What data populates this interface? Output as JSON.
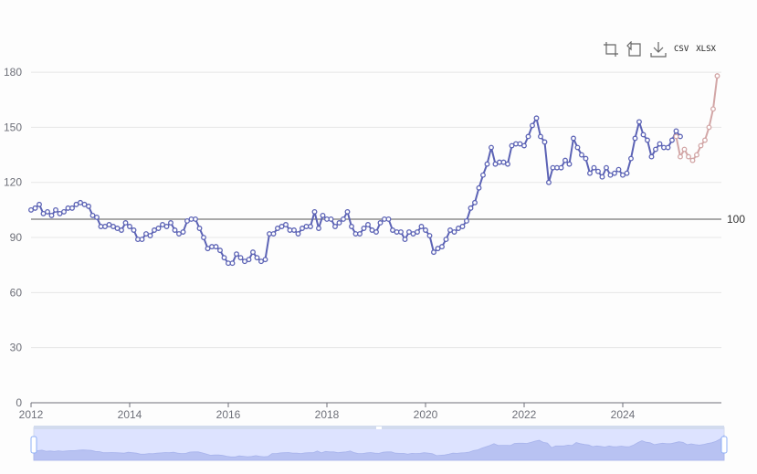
{
  "toolbox": {
    "items": [
      {
        "icon": "zoom-area-icon"
      },
      {
        "icon": "zoom-reset-icon"
      },
      {
        "icon": "download-icon"
      }
    ],
    "csv_label": "CSV",
    "xlsx_label": "XLSX"
  },
  "colors": {
    "actual": "#5c63b5",
    "forecast": "#d2a6a6",
    "grid": "#e6e6e6",
    "reference": "#555555",
    "slider_fill": "#dde3ff",
    "slider_area": "#b8c2f2"
  },
  "chart_data": {
    "type": "line",
    "xlim": [
      2012,
      2026
    ],
    "ylim": [
      0,
      190
    ],
    "y_ticks": [
      "0",
      "30",
      "60",
      "90",
      "120",
      "150",
      "180"
    ],
    "x_ticks": [
      "2012",
      "2014",
      "2016",
      "2018",
      "2020",
      "2022",
      "2024"
    ],
    "reference_line": {
      "value": 100,
      "label": "100"
    },
    "series": [
      {
        "role": "actual",
        "start": 2012.0,
        "step": 0.08333,
        "values": [
          105,
          106,
          108,
          103,
          104,
          102,
          105,
          103,
          104,
          106,
          106,
          108,
          109,
          108,
          107,
          102,
          101,
          96,
          96,
          97,
          96,
          95,
          94,
          98,
          96,
          94,
          89,
          89,
          92,
          91,
          94,
          95,
          97,
          96,
          98,
          94,
          92,
          93,
          99,
          100,
          100,
          95,
          90,
          84,
          85,
          85,
          83,
          79,
          76,
          76,
          81,
          79,
          77,
          78,
          82,
          79,
          77,
          78,
          92,
          92,
          95,
          96,
          97,
          94,
          94,
          92,
          95,
          96,
          96,
          104,
          95,
          102,
          100,
          100,
          96,
          98,
          100,
          104,
          96,
          92,
          92,
          95,
          97,
          94,
          93,
          98,
          100,
          100,
          94,
          93,
          93,
          89,
          93,
          92,
          93,
          96,
          94,
          91,
          82,
          84,
          85,
          89,
          94,
          93,
          95,
          96,
          99,
          106,
          109,
          117,
          124,
          130,
          139,
          130,
          131,
          131,
          130,
          140,
          141,
          141,
          140,
          145,
          151,
          155,
          145,
          142,
          120,
          128,
          128,
          128,
          132,
          130,
          144,
          139,
          135,
          133,
          125,
          128,
          126,
          123,
          128,
          124,
          125,
          127,
          124,
          125,
          133,
          144,
          153,
          146,
          143,
          134,
          138,
          141,
          139,
          139,
          143,
          148,
          145
        ]
      },
      {
        "role": "forecast",
        "start": 2025.083,
        "step": 0.08333,
        "values": [
          145,
          134,
          138,
          134,
          132,
          135,
          140,
          143,
          150,
          160,
          178
        ]
      }
    ]
  }
}
